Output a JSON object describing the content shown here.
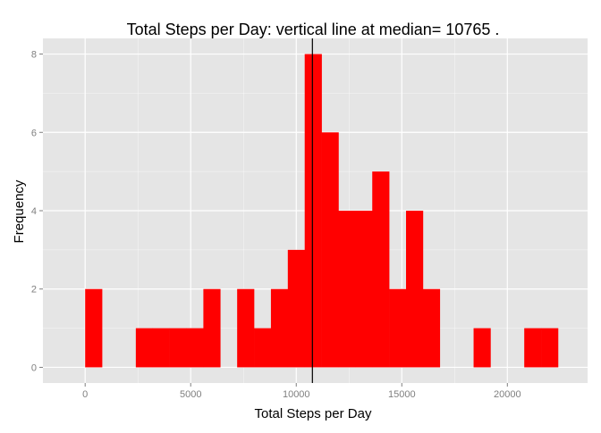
{
  "chart_data": {
    "type": "bar",
    "title": "Total Steps per Day: vertical line at median= 10765 .",
    "xlabel": "Total Steps per Day",
    "ylabel": "Frequency",
    "xlim": [
      -2000,
      23800
    ],
    "ylim": [
      -0.4,
      8.4
    ],
    "x_ticks": [
      0,
      5000,
      10000,
      15000,
      20000
    ],
    "y_ticks": [
      0,
      2,
      4,
      6,
      8
    ],
    "x_tick_labels": [
      "0",
      "5000",
      "10000",
      "15000",
      "20000"
    ],
    "y_tick_labels": [
      "0",
      "2",
      "4",
      "6",
      "8"
    ],
    "grid": true,
    "bin_width": 800,
    "bin_start": 0,
    "counts": [
      2,
      0,
      0,
      1,
      1,
      1,
      1,
      2,
      0,
      2,
      1,
      2,
      3,
      8,
      6,
      4,
      4,
      5,
      2,
      4,
      2,
      0,
      0,
      1,
      0,
      0,
      1,
      1,
      0
    ],
    "median": 10765,
    "bar_color": "#ff0000",
    "median_line_color": "#000000",
    "panel_background": "#e5e5e5",
    "grid_color": "#ffffff"
  }
}
